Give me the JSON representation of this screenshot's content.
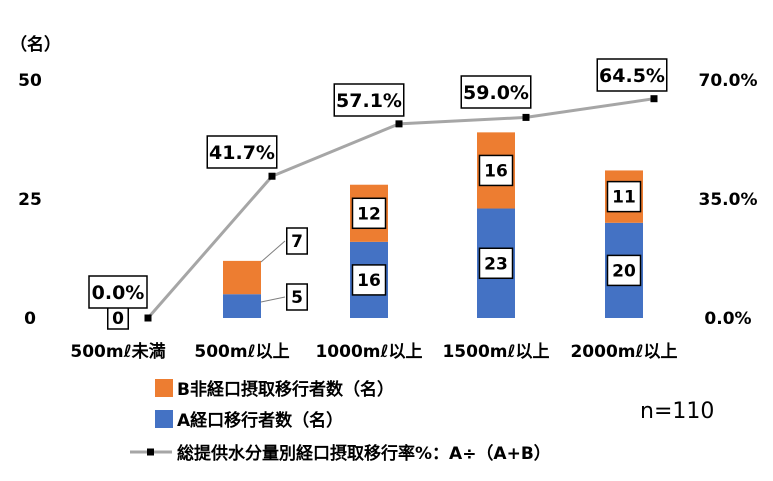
{
  "chart_data": {
    "type": "bar",
    "stacked": true,
    "categories": [
      "500mℓ未満",
      "500mℓ以上",
      "1000mℓ以上",
      "1500mℓ以上",
      "2000mℓ以上"
    ],
    "series": [
      {
        "name": "A経口移行者数（名）",
        "values": [
          0,
          5,
          16,
          23,
          20
        ],
        "color": "#4472C4"
      },
      {
        "name": "B非経口摂取移行者数（名）",
        "values": [
          0,
          7,
          12,
          16,
          11
        ],
        "color": "#ED7D31"
      }
    ],
    "line_series": {
      "name": "総提供水分量別経口摂取移行率%：A÷（A+B）",
      "values": [
        0.0,
        41.7,
        57.1,
        59.0,
        64.5
      ],
      "labels": [
        "0.0%",
        "41.7%",
        "57.1%",
        "59.0%",
        "64.5%"
      ],
      "color": "#A6A6A6",
      "axis": "right"
    },
    "y_left": {
      "unit": "（名）",
      "ticks": [
        0,
        25,
        50
      ],
      "tick_labels": [
        "0",
        "25",
        "50"
      ],
      "ylim": [
        0,
        50
      ]
    },
    "y_right": {
      "ticks": [
        0,
        35,
        70
      ],
      "tick_labels": [
        "0.0%",
        "35.0%",
        "70.0%"
      ],
      "ylim": [
        0,
        70
      ]
    },
    "legend_position": "bottom-left",
    "annotation": "n=110",
    "grid": false
  }
}
